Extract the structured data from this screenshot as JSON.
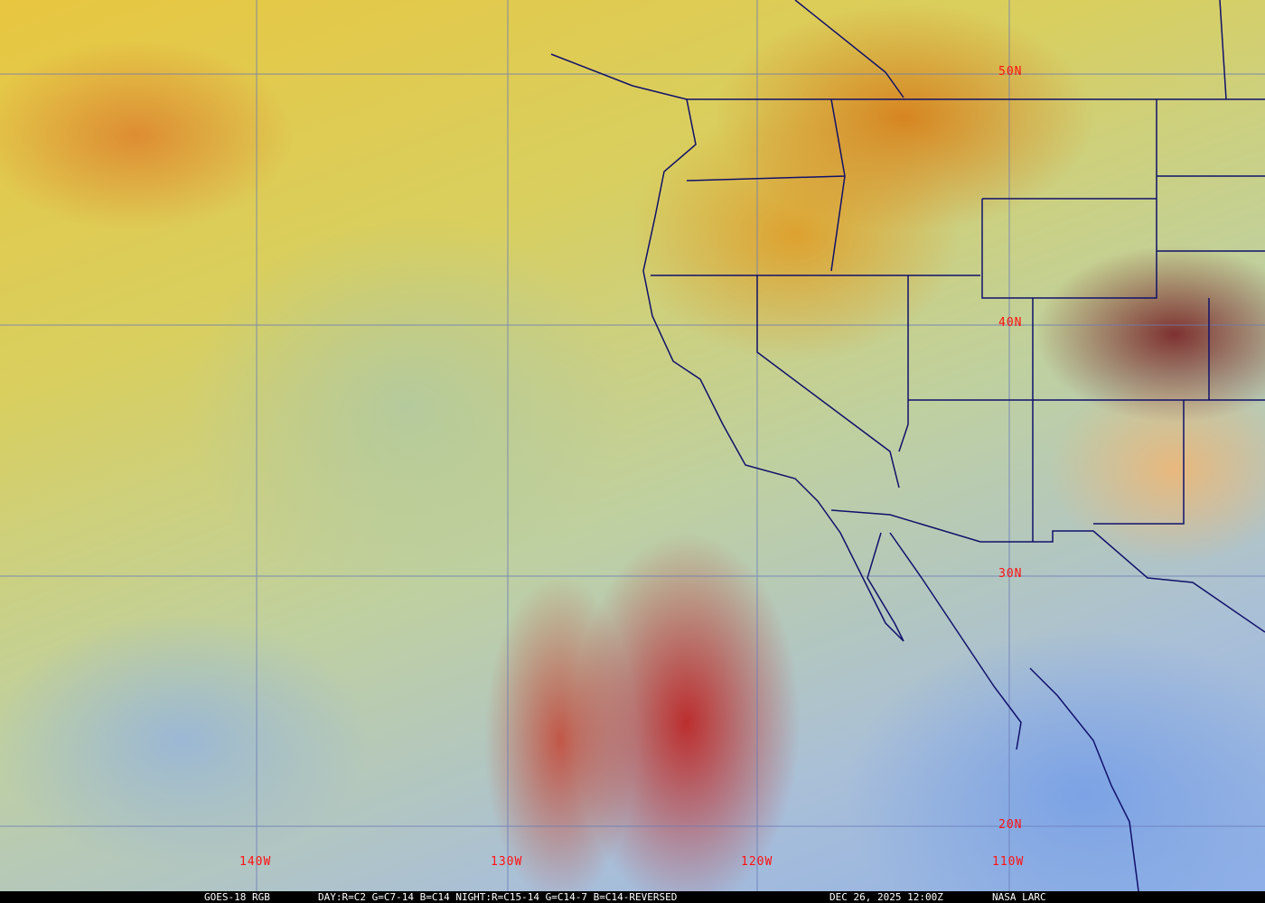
{
  "map": {
    "latitude_labels": [
      "50N",
      "40N",
      "30N",
      "20N"
    ],
    "longitude_labels": [
      "140W",
      "130W",
      "120W",
      "110W"
    ],
    "grid_color": "#6a7ab8",
    "boundary_color": "#10106a",
    "label_color": "#ff1010"
  },
  "footer": {
    "satellite": "GOES-18 RGB",
    "product": "DAY:R=C2 G=C7-14 B=C14 NIGHT:R=C15-14 G=C14-7 B=C14-REVERSED",
    "timestamp": "DEC 26, 2025 12:00Z",
    "source": "NASA LARC"
  }
}
